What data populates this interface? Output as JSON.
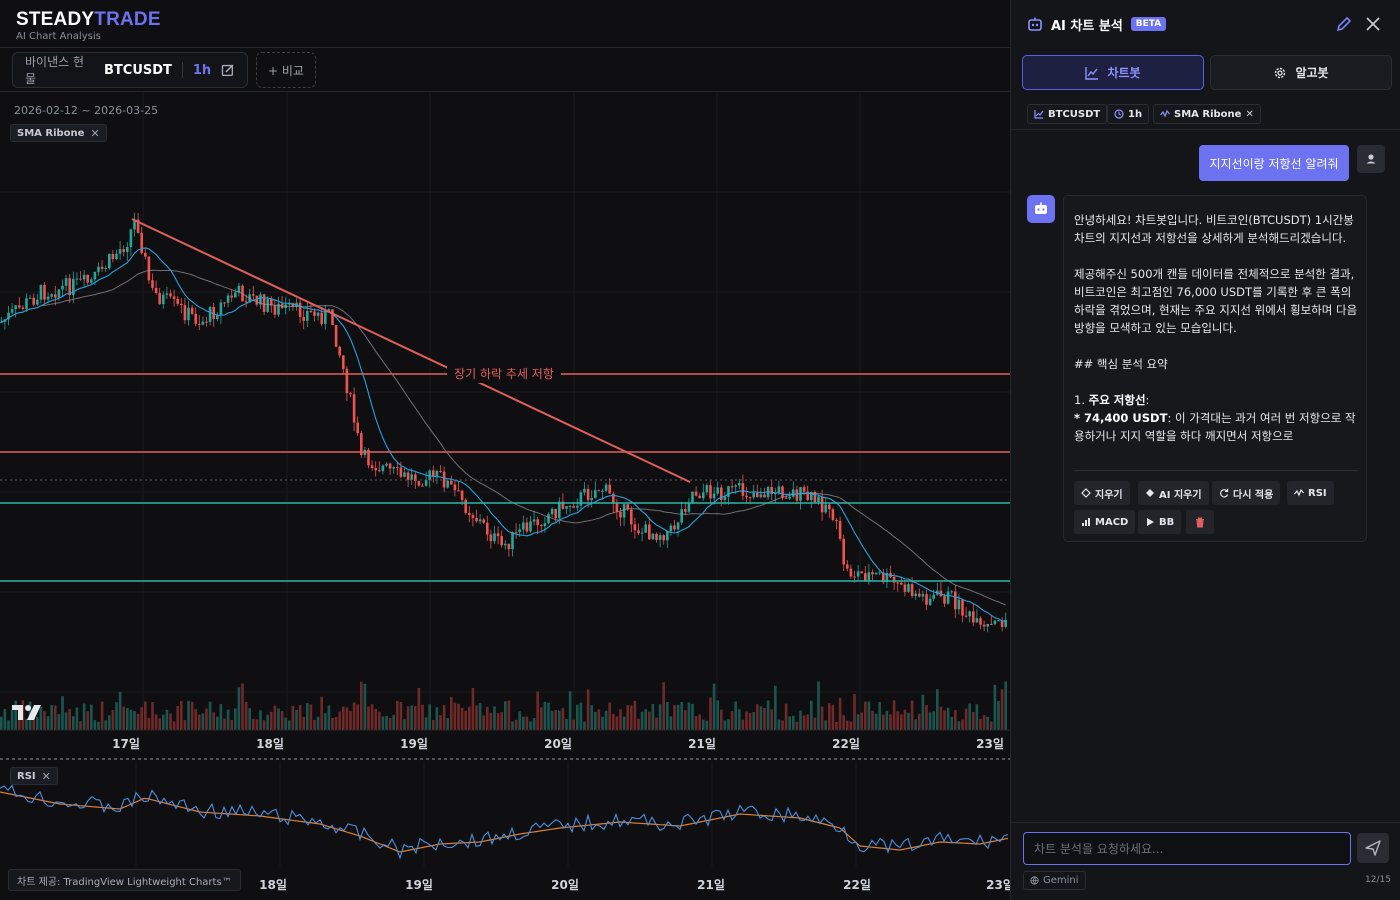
{
  "brand": {
    "name_a": "STEADY",
    "name_b": "TRADE",
    "subtitle": "AI Chart Analysis"
  },
  "toolbar": {
    "exchange": "바이낸스 현물",
    "symbol": "BTCUSDT",
    "timeframe": "1h",
    "compare_label": "+ 비교"
  },
  "chart": {
    "date_range": "2026-02-12 ~ 2026-03-25",
    "indicator_chip": "SMA Ribone",
    "rsi_chip": "RSI",
    "trendline_label": "장기 하락 추세 저항",
    "x_labels_main": [
      "17일",
      "18일",
      "19일",
      "20일",
      "21일",
      "22일",
      "23일"
    ],
    "x_labels_rsi": [
      "18일",
      "19일",
      "20일",
      "21일",
      "22일",
      "23일"
    ],
    "credit": "차트 제공: TradingView Lightweight Charts™",
    "colors": {
      "up": "#26a69a",
      "down": "#ef5350",
      "resistance": "#e0605e",
      "support": "#2bb5a5",
      "sma_fast": "#2d9fd9",
      "sma_slow": "#9a9aa0",
      "rsi": "#4f8fe0",
      "rsi_ma": "#e0802f"
    }
  },
  "panel": {
    "title": "AI 차트 분석",
    "badge": "BETA",
    "tabs": [
      {
        "label": "차트봇",
        "icon": "line-chart-icon"
      },
      {
        "label": "알고봇",
        "icon": "gear-icon"
      }
    ],
    "context_chips": [
      {
        "label": "BTCUSDT",
        "icon": "chart-icon"
      },
      {
        "label": "1h",
        "icon": "clock-icon"
      },
      {
        "label": "SMA Ribone",
        "icon": "wave-icon"
      }
    ],
    "user_message": "지지선이랑 저항선 알려줘",
    "bot_message": {
      "p1": "안녕하세요! 차트봇입니다. 비트코인(BTCUSDT) 1시간봉 차트의 지지선과 저항선을 상세하게 분석해드리겠습니다.",
      "p2": "제공해주신 500개 캔들 데이터를 전체적으로 분석한 결과, 비트코인은 최고점인 76,000 USDT를 기록한 후 큰 폭의 하락을 겪었으며, 현재는 주요 지지선 위에서 횡보하며 다음 방향을 모색하고 있는 모습입니다.",
      "p3": "## 핵심 분석 요약",
      "p4_num": "1. ",
      "p4_bold": "주요 저항선",
      "p4_tail": ":",
      "p5_prefix": "* ",
      "p5_bold": "74,400 USDT",
      "p5_rest": ": 이 가격대는 과거 여러 번 저항으로 작용하거나 지지 역할을 하다 깨지면서 저항으로"
    },
    "actions": [
      {
        "label": "지우기",
        "icon": "eraser-icon"
      },
      {
        "label": "AI 지우기",
        "icon": "ai-eraser-icon"
      },
      {
        "label": "다시 적용",
        "icon": "refresh-icon"
      },
      {
        "label": "RSI",
        "icon": "pulse-icon"
      },
      {
        "label": "MACD",
        "icon": "bar-chart-icon"
      },
      {
        "label": "BB",
        "icon": "play-icon"
      }
    ],
    "input_placeholder": "차트 분석을 요청하세요...",
    "model": "Gemini",
    "counter": "12/15"
  }
}
